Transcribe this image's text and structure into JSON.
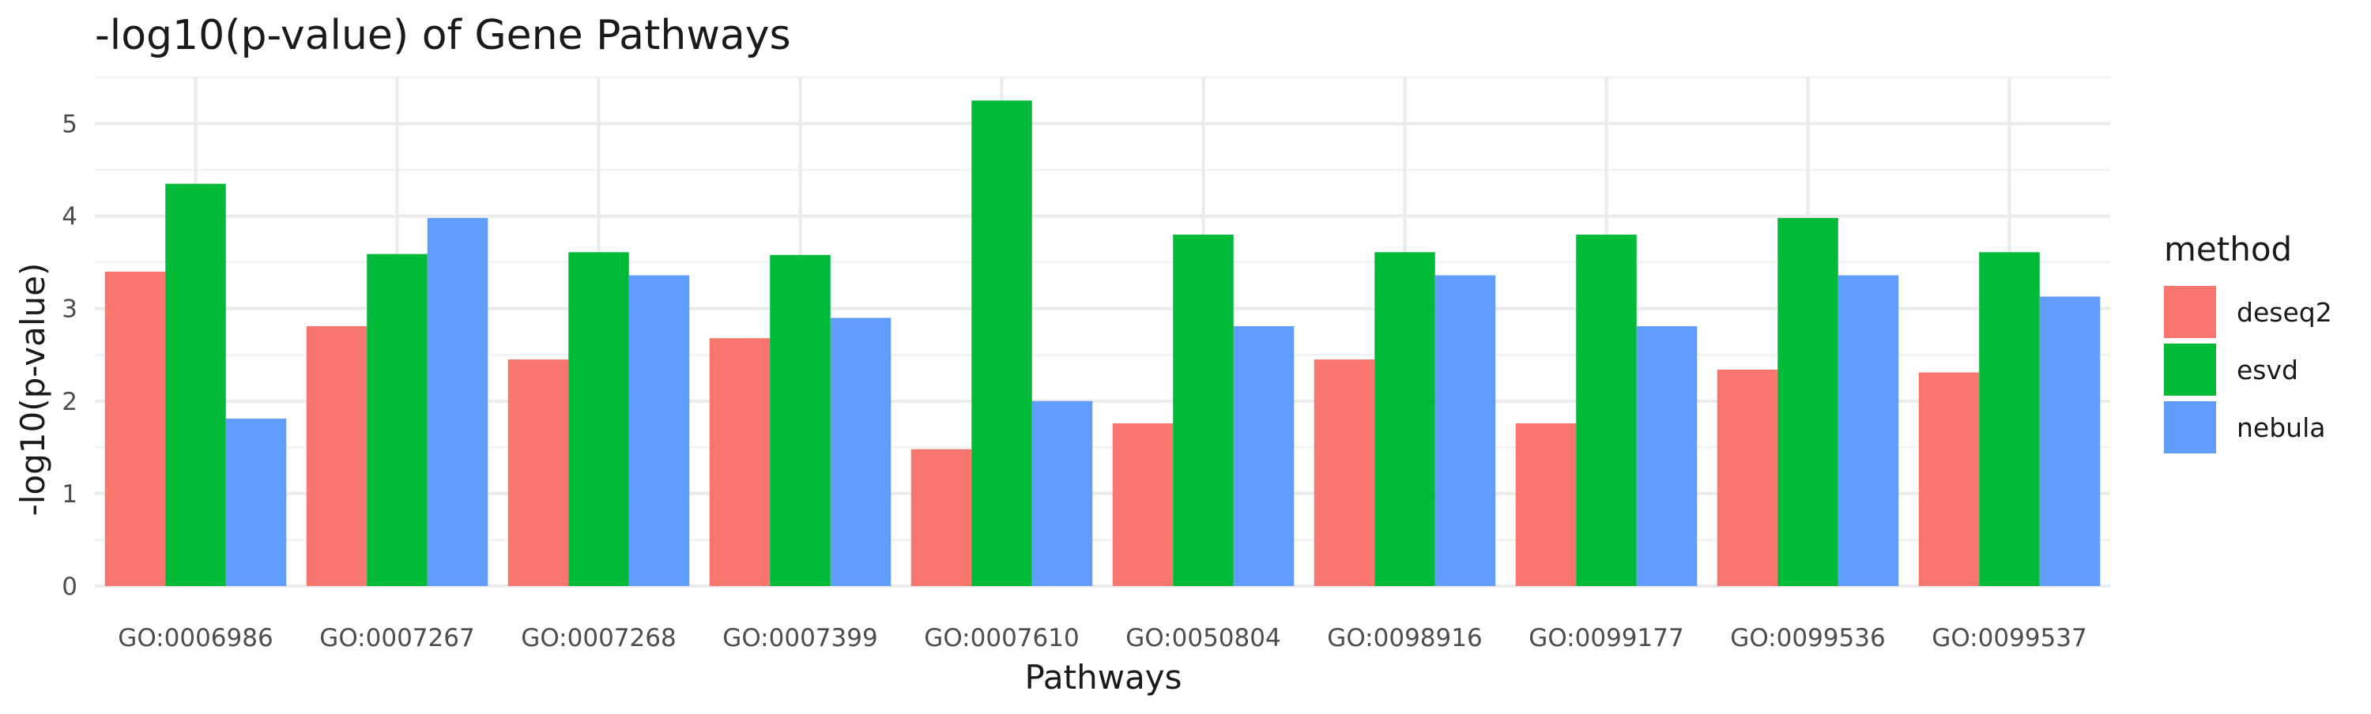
{
  "chart_data": {
    "type": "bar",
    "title": "-log10(p-value) of Gene Pathways",
    "xlabel": "Pathways",
    "ylabel": "-log10(p-value)",
    "ylim": [
      0,
      5.5
    ],
    "yticks": [
      0,
      1,
      2,
      3,
      4,
      5
    ],
    "grid": true,
    "legend": {
      "title": "method",
      "position": "right"
    },
    "categories": [
      "GO:0006986",
      "GO:0007267",
      "GO:0007268",
      "GO:0007399",
      "GO:0007610",
      "GO:0050804",
      "GO:0098916",
      "GO:0099177",
      "GO:0099536",
      "GO:0099537"
    ],
    "series": [
      {
        "name": "deseq2",
        "color": "#F8766D",
        "values": [
          3.4,
          2.81,
          2.45,
          2.68,
          1.48,
          1.76,
          2.45,
          1.76,
          2.34,
          2.31
        ]
      },
      {
        "name": "esvd",
        "color": "#00BA38",
        "values": [
          4.35,
          3.59,
          3.61,
          3.58,
          5.25,
          3.8,
          3.61,
          3.8,
          3.98,
          3.61
        ]
      },
      {
        "name": "nebula",
        "color": "#619CFF",
        "values": [
          1.81,
          3.98,
          3.36,
          2.9,
          2.0,
          2.81,
          3.36,
          2.81,
          3.36,
          3.13
        ]
      }
    ]
  }
}
